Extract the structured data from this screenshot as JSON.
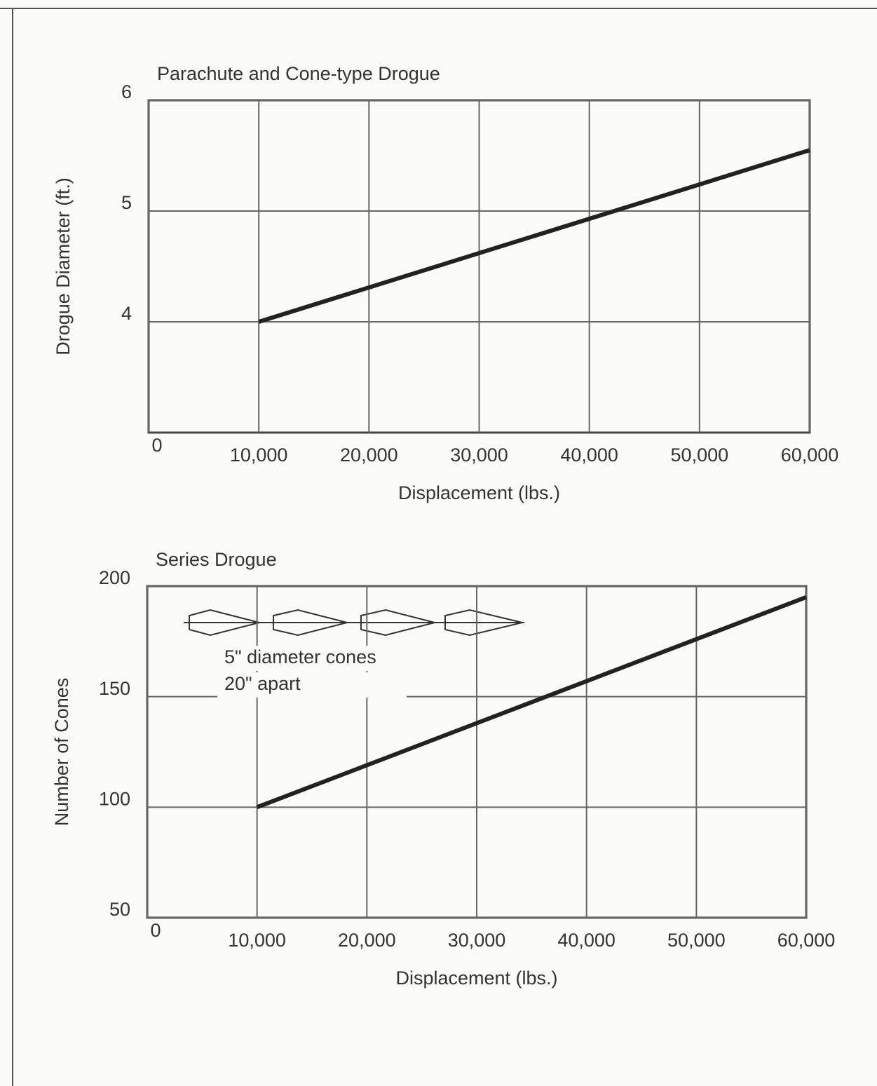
{
  "chart_data": [
    {
      "type": "line",
      "title": "Parachute and Cone-type Drogue",
      "x_label": "Displacement (lbs.)",
      "y_label": "Drogue Diameter (ft.)",
      "x": [
        10000,
        60000
      ],
      "values": [
        4,
        5.55
      ],
      "color": "#222222",
      "xlim": [
        0,
        60000
      ],
      "xticks": [
        0,
        {
          "value": 10000,
          "label": "10,000"
        },
        {
          "value": 20000,
          "label": "20,000"
        },
        {
          "value": 30000,
          "label": "30,000"
        },
        {
          "value": 40000,
          "label": "40,000"
        },
        {
          "value": 50000,
          "label": "50,000"
        },
        {
          "value": 60000,
          "label": "60,000"
        }
      ],
      "ylim": [
        3,
        6
      ],
      "yticks": [
        4,
        5,
        6
      ],
      "grid": true
    },
    {
      "type": "line",
      "title": "Series Drogue",
      "x_label": "Displacement (lbs.)",
      "y_label": "Number of Cones",
      "x": [
        10000,
        60000
      ],
      "values": [
        100,
        195
      ],
      "color": "#222222",
      "xlim": [
        0,
        60000
      ],
      "xticks": [
        0,
        {
          "value": 10000,
          "label": "10,000"
        },
        {
          "value": 20000,
          "label": "20,000"
        },
        {
          "value": 30000,
          "label": "30,000"
        },
        {
          "value": 40000,
          "label": "40,000"
        },
        {
          "value": 50000,
          "label": "50,000"
        },
        {
          "value": 60000,
          "label": "60,000"
        }
      ],
      "ylim": [
        50,
        200
      ],
      "yticks": [
        50,
        100,
        150,
        200
      ],
      "grid": true,
      "annotations": [
        "5\" diameter cones",
        "20\" apart"
      ]
    }
  ]
}
